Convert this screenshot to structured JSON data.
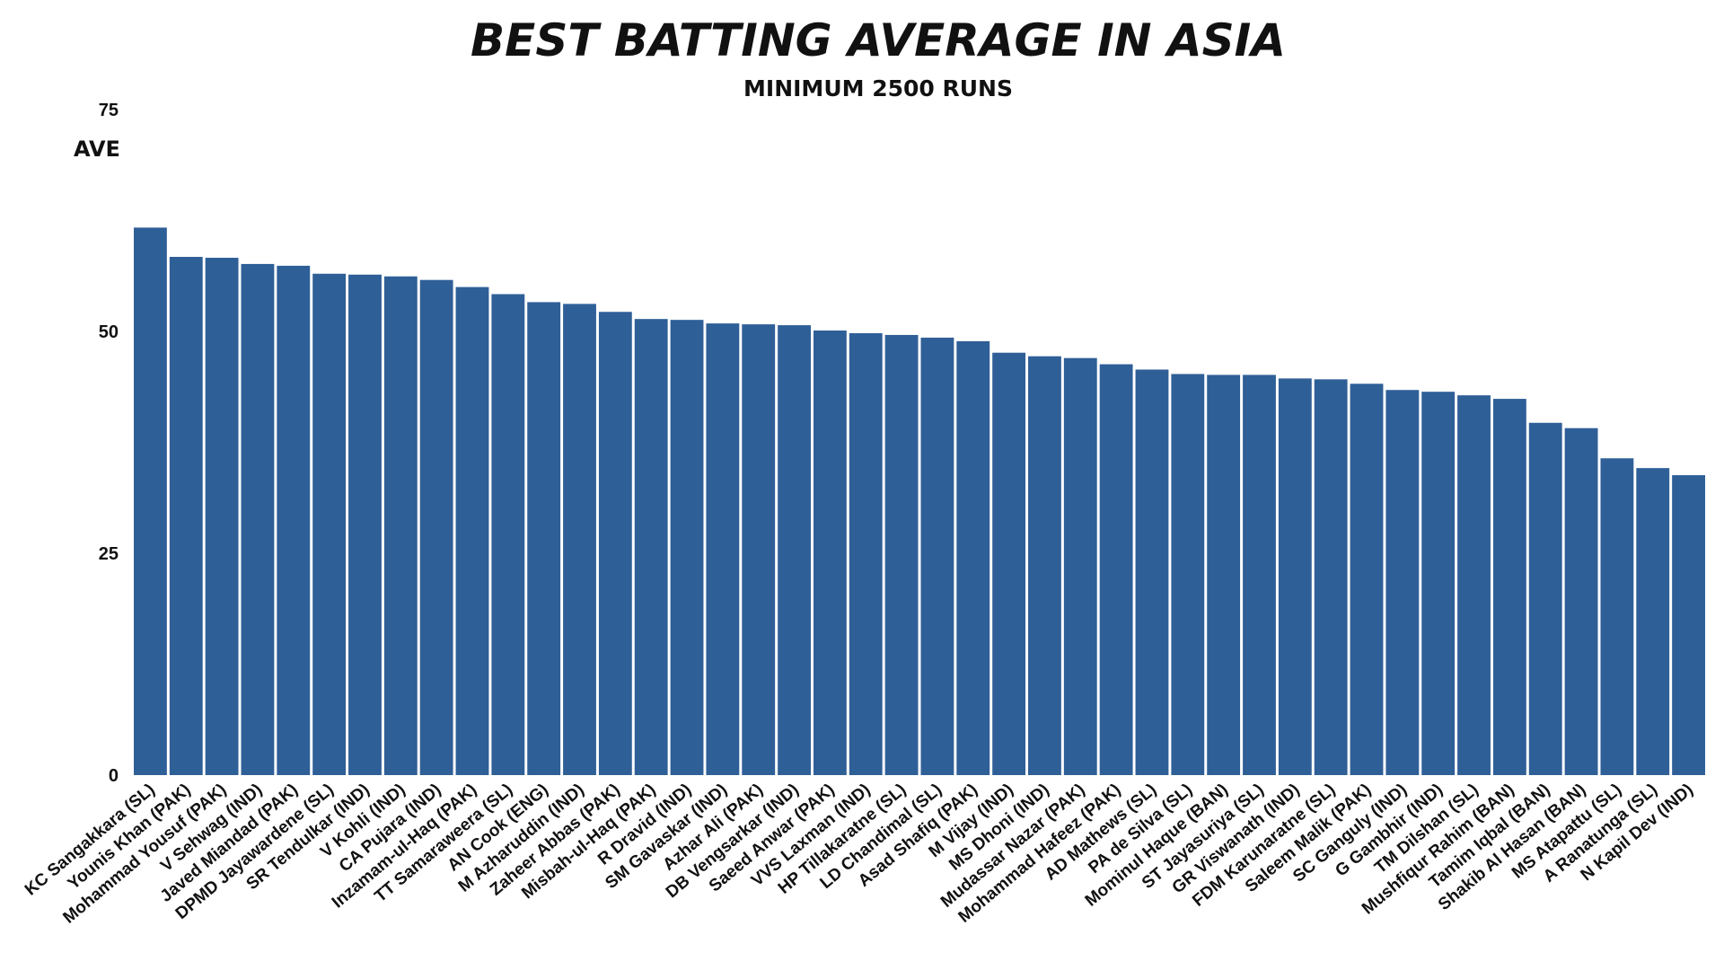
{
  "chart_data": {
    "type": "bar",
    "title": "BEST BATTING AVERAGE IN ASIA",
    "subtitle": "MINIMUM 2500 RUNS",
    "xlabel": "",
    "ylabel": "AVE",
    "ylim": [
      0,
      75
    ],
    "yticks": [
      0,
      25,
      50,
      75
    ],
    "grid": false,
    "legend": "none",
    "bar_color": "#2f5f97",
    "categories": [
      "KC Sangakkara (SL)",
      "Younis Khan (PAK)",
      "Mohammad Yousuf (PAK)",
      "V Sehwag (IND)",
      "Javed Miandad (PAK)",
      "DPMD Jayawardene (SL)",
      "SR Tendulkar (IND)",
      "V Kohli (IND)",
      "CA Pujara (IND)",
      "Inzamam-ul-Haq (PAK)",
      "TT Samaraweera (SL)",
      "AN Cook (ENG)",
      "M Azharuddin (IND)",
      "Zaheer Abbas (PAK)",
      "Misbah-ul-Haq (PAK)",
      "R Dravid (IND)",
      "SM Gavaskar (IND)",
      "Azhar Ali (PAK)",
      "DB Vengsarkar (IND)",
      "Saeed Anwar (PAK)",
      "VVS Laxman (IND)",
      "HP Tillakaratne (SL)",
      "LD Chandimal (SL)",
      "Asad Shafiq (PAK)",
      "M Vijay (IND)",
      "MS Dhoni (IND)",
      "Mudassar Nazar (PAK)",
      "Mohammad Hafeez (PAK)",
      "AD Mathews (SL)",
      "PA de Silva (SL)",
      "Mominul Haque (BAN)",
      "ST Jayasuriya (SL)",
      "GR Viswanath (IND)",
      "FDM Karunaratne (SL)",
      "Saleem Malik (PAK)",
      "SC Ganguly (IND)",
      "G Gambhir (IND)",
      "TM Dilshan (SL)",
      "Mushfiqur Rahim (BAN)",
      "Tamim Iqbal (BAN)",
      "Shakib Al Hasan (BAN)",
      "MS Atapattu (SL)",
      "A Ranatunga (SL)",
      "N Kapil Dev (IND)"
    ],
    "values": [
      61.7,
      58.4,
      58.3,
      57.6,
      57.4,
      56.5,
      56.4,
      56.2,
      55.8,
      55.0,
      54.2,
      53.3,
      53.1,
      52.2,
      51.4,
      51.3,
      50.9,
      50.8,
      50.7,
      50.1,
      49.8,
      49.6,
      49.3,
      48.9,
      47.6,
      47.2,
      47.0,
      46.3,
      45.7,
      45.2,
      45.1,
      45.1,
      44.7,
      44.6,
      44.1,
      43.4,
      43.2,
      42.8,
      42.4,
      39.7,
      39.1,
      35.7,
      34.6,
      33.8
    ]
  }
}
